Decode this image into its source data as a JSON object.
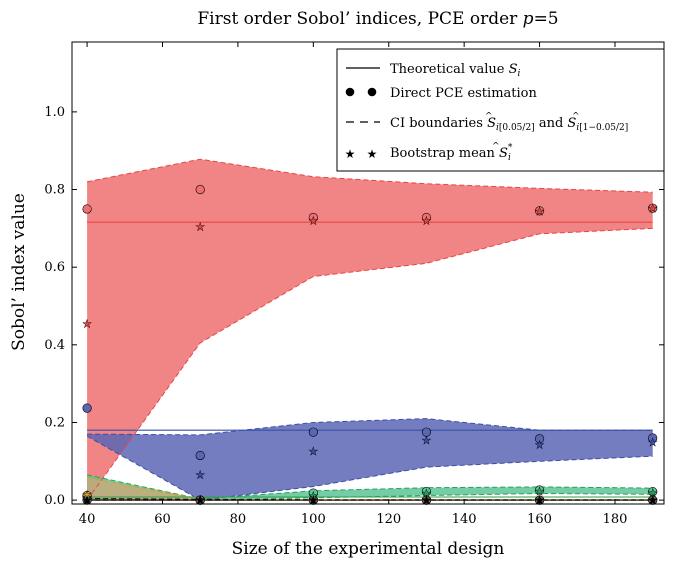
{
  "chart_data": {
    "type": "line",
    "title": "First order Sobol’ indices, PCE order p=5",
    "title_parts": {
      "main": "First order Sobol’ indices, PCE order ",
      "var": "p",
      "rest": "=5"
    },
    "xlabel": "Size of the experimental design",
    "ylabel": "Sobol’ index value",
    "xlim": [
      36,
      193
    ],
    "ylim": [
      -0.01,
      1.18
    ],
    "xticks": [
      40,
      60,
      80,
      100,
      120,
      140,
      160,
      180
    ],
    "yticks": [
      0.0,
      0.2,
      0.4,
      0.6,
      0.8,
      1.0
    ],
    "ytick_labels": [
      "0.0",
      "0.2",
      "0.4",
      "0.6",
      "0.8",
      "1.0"
    ],
    "legend_position": "top-right",
    "legend": [
      {
        "kind": "line",
        "text": "Theoretical value ",
        "math": "S",
        "sub": "i"
      },
      {
        "kind": "dots",
        "text": "Direct PCE estimation"
      },
      {
        "kind": "dashed",
        "text": "CI boundaries ",
        "ci_low": "[0.05/2]",
        "ci_high": "[1−0.05/2]",
        "and": " and "
      },
      {
        "kind": "stars",
        "text": "Bootstrap mean ",
        "math": "S",
        "sub": "i",
        "sup": "*"
      }
    ],
    "x": [
      40,
      70,
      100,
      130,
      160,
      190
    ],
    "series": [
      {
        "color": "#e84545",
        "fill": "#ee6f6f",
        "theoretical": 0.716,
        "direct": [
          0.75,
          0.8,
          0.728,
          0.728,
          0.745,
          0.752
        ],
        "bootstrap_mean": [
          0.455,
          0.705,
          0.72,
          0.72,
          0.745,
          0.752
        ],
        "ci_low": [
          0.0,
          0.405,
          0.576,
          0.61,
          0.686,
          0.7
        ],
        "ci_high": [
          0.82,
          0.878,
          0.833,
          0.815,
          0.803,
          0.793
        ]
      },
      {
        "color": "#3a4fa8",
        "fill": "#5a66b4",
        "theoretical": 0.18,
        "direct": [
          0.237,
          0.115,
          0.175,
          0.175,
          0.158,
          0.16
        ],
        "bootstrap_mean": [
          0.008,
          0.066,
          0.126,
          0.155,
          0.143,
          0.15
        ],
        "ci_low": [
          0.165,
          0.0,
          0.035,
          0.085,
          0.1,
          0.113
        ],
        "ci_high": [
          0.17,
          0.168,
          0.2,
          0.21,
          0.18,
          0.18
        ]
      },
      {
        "color": "#2e9e56",
        "fill": "#5cc496",
        "theoretical": 0.008,
        "direct": [
          0.01,
          0.0,
          0.018,
          0.022,
          0.026,
          0.022
        ],
        "bootstrap_mean": [
          0.006,
          0.001,
          0.012,
          0.018,
          0.023,
          0.02
        ],
        "ci_low": [
          0.0,
          0.0,
          0.006,
          0.012,
          0.017,
          0.015
        ],
        "ci_high": [
          0.065,
          0.003,
          0.024,
          0.032,
          0.034,
          0.031
        ]
      },
      {
        "color": "#d9a020",
        "fill": "#c8a878",
        "theoretical": 0.0,
        "direct": [
          0.012,
          0.0,
          0.0,
          0.0,
          0.0,
          0.0
        ],
        "bootstrap_mean": [
          0.015,
          0.001,
          0.001,
          0.001,
          0.001,
          0.001
        ],
        "ci_low": [
          0.0,
          0.0,
          0.0,
          0.0,
          0.0,
          0.0
        ],
        "ci_high": [
          0.058,
          0.002,
          0.001,
          0.001,
          0.001,
          0.001
        ]
      },
      {
        "color": "#000000",
        "fill": "#666666",
        "theoretical": 0.0,
        "direct": [
          0.0,
          0.0,
          0.0,
          0.0,
          0.0,
          0.0
        ],
        "bootstrap_mean": [
          0.0,
          0.0,
          0.0,
          0.0,
          0.0,
          0.0
        ],
        "ci_low": [
          0.0,
          0.0,
          0.0,
          0.0,
          0.0,
          0.0
        ],
        "ci_high": [
          0.004,
          0.002,
          0.001,
          0.001,
          0.001,
          0.001
        ]
      }
    ]
  }
}
